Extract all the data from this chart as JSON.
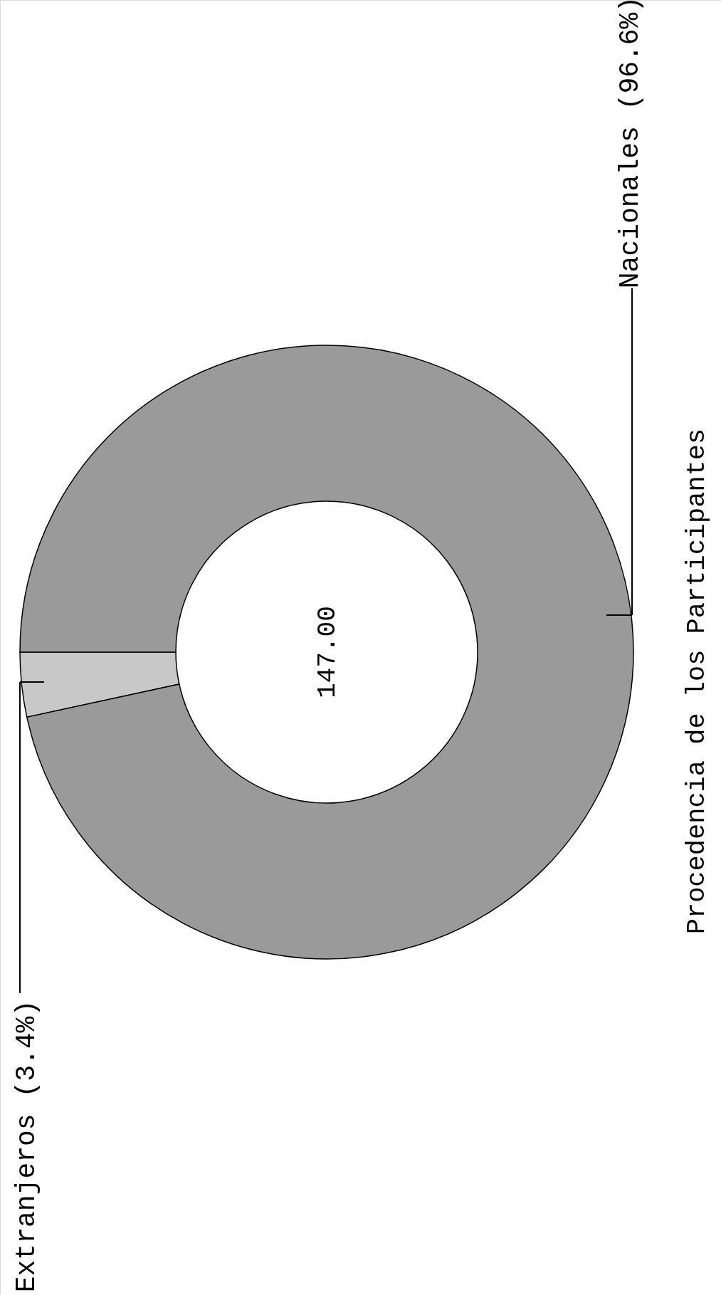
{
  "chart_data": {
    "type": "donut",
    "title": "Procedencia de los Participantes",
    "categories": [
      "Extranjeros",
      "Nacionales"
    ],
    "values": [
      3.4,
      96.6
    ],
    "value_labels": [
      "(3.4%)",
      "(96.6%)"
    ],
    "colors": [
      "#c8c8c8",
      "#9a9a9a"
    ],
    "annotations": [
      "147.00"
    ]
  }
}
